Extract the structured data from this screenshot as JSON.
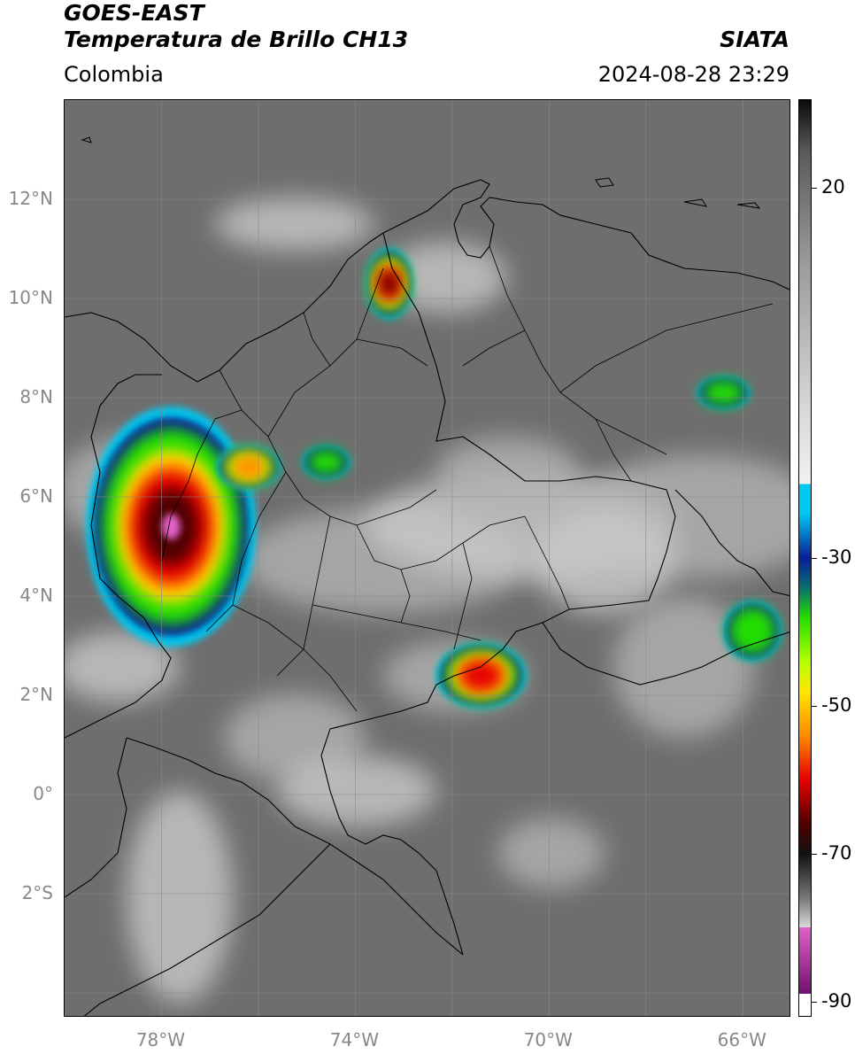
{
  "header": {
    "satellite": "GOES-EAST",
    "product": "Temperatura de Brillo CH13",
    "region": "Colombia",
    "agency": "SIATA",
    "datetime": "2024-08-28 23:29"
  },
  "map": {
    "lon_range": [
      -80,
      -65
    ],
    "lat_range": [
      -4.5,
      14
    ],
    "lat_labels": [
      {
        "lat": 12,
        "text": "12°N"
      },
      {
        "lat": 10,
        "text": "10°N"
      },
      {
        "lat": 8,
        "text": "8°N"
      },
      {
        "lat": 6,
        "text": "6°N"
      },
      {
        "lat": 4,
        "text": "4°N"
      },
      {
        "lat": 2,
        "text": "2°N"
      },
      {
        "lat": 0,
        "text": "0°"
      },
      {
        "lat": -2,
        "text": "2°S"
      }
    ],
    "lon_labels": [
      {
        "lon": -78,
        "text": "78°W"
      },
      {
        "lon": -74,
        "text": "74°W"
      },
      {
        "lon": -70,
        "text": "70°W"
      },
      {
        "lon": -66,
        "text": "66°W"
      }
    ],
    "storm_cells": [
      {
        "name": "pacific-storm",
        "lon": -77.8,
        "lat": 5.4,
        "rx": 1.6,
        "ry": 2.2,
        "min_temp": -80
      },
      {
        "name": "caribbean-storm",
        "lon": -73.3,
        "lat": 10.3,
        "rx": 0.45,
        "ry": 0.65,
        "min_temp": -68
      },
      {
        "name": "llanos-storm",
        "lon": -71.4,
        "lat": 2.4,
        "rx": 0.85,
        "ry": 0.6,
        "min_temp": -56
      },
      {
        "name": "venezuela-storm-east",
        "lon": -65.8,
        "lat": 3.3,
        "rx": 0.55,
        "ry": 0.55,
        "min_temp": -42
      },
      {
        "name": "venezuela-storm-north",
        "lon": -66.4,
        "lat": 8.1,
        "rx": 0.5,
        "ry": 0.3,
        "min_temp": -40
      },
      {
        "name": "antioquia-storm",
        "lon": -76.2,
        "lat": 6.6,
        "rx": 0.6,
        "ry": 0.4,
        "min_temp": -50
      },
      {
        "name": "santander-storm",
        "lon": -74.6,
        "lat": 6.7,
        "rx": 0.45,
        "ry": 0.3,
        "min_temp": -40
      }
    ]
  },
  "colorbar": {
    "range": [
      -92,
      32
    ],
    "ticks": [
      {
        "value": 20,
        "text": "20"
      },
      {
        "value": -30,
        "text": "-30"
      },
      {
        "value": -50,
        "text": "-50"
      },
      {
        "value": -70,
        "text": "-70"
      },
      {
        "value": -90,
        "text": "-90"
      }
    ],
    "colors": {
      "cyan": "#00c8f0",
      "blue": "#0a1e96",
      "green": "#22dd00",
      "yellow": "#ffe600",
      "orange": "#ff8c00",
      "red": "#e60000",
      "darkred": "#500000",
      "pink": "#e060c8",
      "purple": "#701070"
    }
  }
}
